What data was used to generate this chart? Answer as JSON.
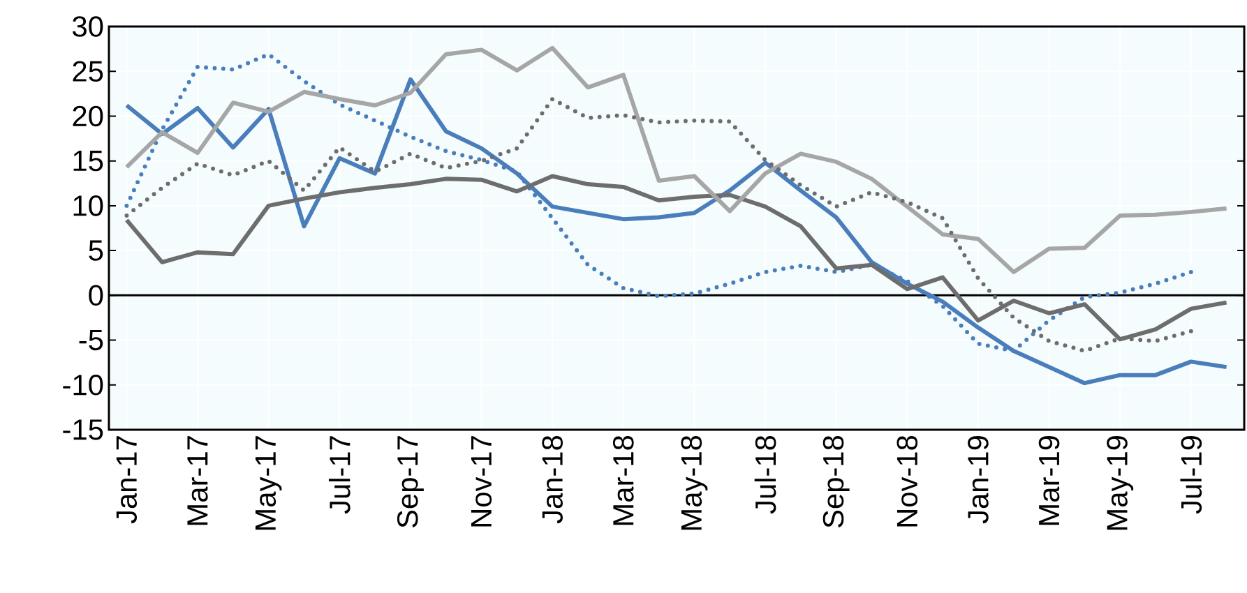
{
  "chart_data": {
    "type": "line",
    "categories": [
      "Jan-17",
      null,
      "Mar-17",
      null,
      "May-17",
      null,
      "Jul-17",
      null,
      "Sep-17",
      null,
      "Nov-17",
      null,
      "Jan-18",
      null,
      "Mar-18",
      null,
      "May-18",
      null,
      "Jul-18",
      null,
      "Sep-18",
      null,
      "Nov-18",
      null,
      "Jan-19",
      null,
      "Mar-19",
      null,
      "May-19",
      null,
      "Jul-19",
      null
    ],
    "ylim": [
      -15,
      30
    ],
    "yticks": [
      -15,
      -10,
      -5,
      0,
      5,
      10,
      15,
      20,
      25,
      30
    ],
    "grid": true,
    "series": [
      {
        "color": "#4a7ebb",
        "line_style": "solid",
        "values": [
          21.2,
          18.0,
          20.9,
          16.5,
          20.8,
          7.7,
          15.3,
          13.6,
          24.1,
          18.3,
          16.4,
          13.6,
          9.9,
          9.2,
          8.5,
          8.7,
          9.2,
          11.7,
          14.8,
          11.7,
          8.7,
          3.7,
          1.3,
          -0.7,
          -3.6,
          -6.2,
          -8.0,
          -9.8,
          -8.9,
          -8.9,
          -7.4,
          -8.0
        ]
      },
      {
        "color": "#4a7ebb",
        "line_style": "dotted",
        "values": [
          10.0,
          18.5,
          25.5,
          25.2,
          26.9,
          23.9,
          21.3,
          19.5,
          17.7,
          16.1,
          15.1,
          13.8,
          8.6,
          3.4,
          0.8,
          -0.1,
          0.2,
          1.3,
          2.6,
          3.3,
          2.6,
          3.4,
          1.6,
          -1.2,
          -5.4,
          -6.2,
          -2.8,
          -0.2,
          0.3,
          1.3,
          2.6,
          null
        ]
      },
      {
        "color": "#6d6d6d",
        "line_style": "solid",
        "values": [
          8.4,
          3.7,
          4.8,
          4.6,
          10.0,
          10.8,
          11.5,
          12.0,
          12.4,
          13.0,
          12.9,
          11.6,
          13.3,
          12.4,
          12.1,
          10.6,
          11.0,
          11.2,
          9.9,
          7.7,
          3.0,
          3.4,
          0.7,
          2.0,
          -2.8,
          -0.6,
          -2.0,
          -1.0,
          -4.9,
          -3.8,
          -1.5,
          -0.8
        ]
      },
      {
        "color": "#a6a6a6",
        "line_style": "solid",
        "values": [
          14.3,
          18.2,
          15.9,
          21.5,
          20.5,
          22.7,
          21.9,
          21.2,
          22.6,
          26.9,
          27.4,
          25.1,
          27.6,
          23.2,
          24.6,
          12.8,
          13.3,
          9.4,
          13.6,
          15.8,
          14.9,
          13.0,
          9.9,
          6.8,
          6.3,
          2.6,
          5.2,
          5.3,
          8.9,
          9.0,
          9.3,
          9.7
        ]
      },
      {
        "color": "#6d6d6d",
        "line_style": "dotted",
        "values": [
          8.9,
          12.0,
          14.7,
          13.4,
          15.0,
          11.7,
          16.5,
          13.8,
          15.8,
          14.2,
          15.0,
          16.4,
          21.9,
          19.8,
          20.1,
          19.3,
          19.5,
          19.4,
          15.1,
          12.3,
          9.9,
          11.5,
          10.4,
          8.6,
          1.9,
          -2.5,
          -5.1,
          -6.2,
          -4.8,
          -5.1,
          -4.0,
          null
        ]
      }
    ]
  }
}
